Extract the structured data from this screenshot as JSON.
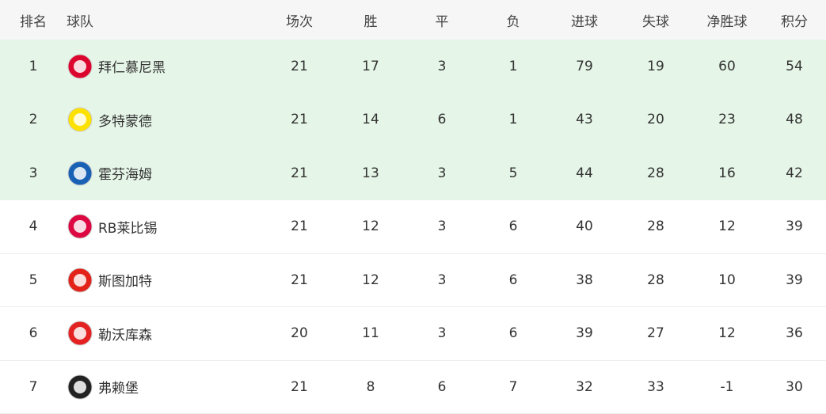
{
  "headers": [
    "排名",
    "球队",
    "场次",
    "胜",
    "平",
    "负",
    "进球",
    "失球",
    "净胜球",
    "积分"
  ],
  "rows": [
    {
      "rank": "1",
      "team": "拜仁慕尼黑",
      "logo": "bayern-logo-icon",
      "played": "21",
      "w": "17",
      "d": "3",
      "l": "1",
      "gf": "79",
      "ga": "19",
      "gd": "60",
      "pts": "54",
      "color": "#dc052d"
    },
    {
      "rank": "2",
      "team": "多特蒙德",
      "logo": "dortmund-logo-icon",
      "played": "21",
      "w": "14",
      "d": "6",
      "l": "1",
      "gf": "43",
      "ga": "20",
      "gd": "23",
      "pts": "48",
      "color": "#fde100"
    },
    {
      "rank": "3",
      "team": "霍芬海姆",
      "logo": "hoffenheim-logo-icon",
      "played": "21",
      "w": "13",
      "d": "3",
      "l": "5",
      "gf": "44",
      "ga": "28",
      "gd": "16",
      "pts": "42",
      "color": "#1961b5"
    },
    {
      "rank": "4",
      "team": "RB莱比锡",
      "logo": "leipzig-logo-icon",
      "played": "21",
      "w": "12",
      "d": "3",
      "l": "6",
      "gf": "40",
      "ga": "28",
      "gd": "12",
      "pts": "39",
      "color": "#dd0741"
    },
    {
      "rank": "5",
      "team": "斯图加特",
      "logo": "stuttgart-logo-icon",
      "played": "21",
      "w": "12",
      "d": "3",
      "l": "6",
      "gf": "38",
      "ga": "28",
      "gd": "10",
      "pts": "39",
      "color": "#e32219"
    },
    {
      "rank": "6",
      "team": "勒沃库森",
      "logo": "leverkusen-logo-icon",
      "played": "20",
      "w": "11",
      "d": "3",
      "l": "6",
      "gf": "39",
      "ga": "27",
      "gd": "12",
      "pts": "36",
      "color": "#e32221"
    },
    {
      "rank": "7",
      "team": "弗赖堡",
      "logo": "freiburg-logo-icon",
      "played": "21",
      "w": "8",
      "d": "6",
      "l": "7",
      "gf": "32",
      "ga": "33",
      "gd": "-1",
      "pts": "30",
      "color": "#222222"
    }
  ],
  "highlight_color": "#e5f5e7"
}
